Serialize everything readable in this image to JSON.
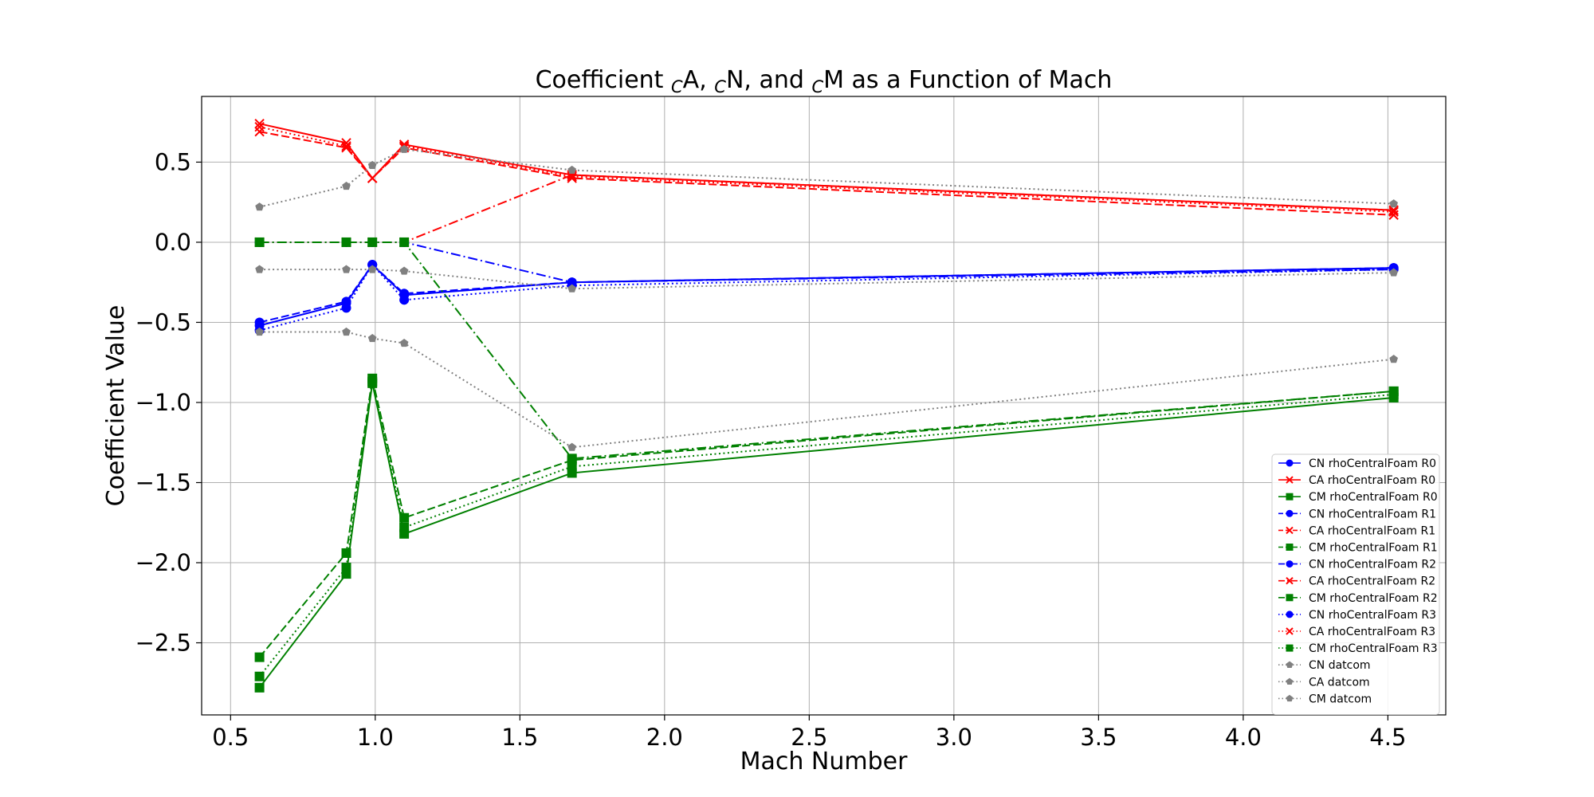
{
  "chart_data": {
    "type": "line",
    "title_parts": [
      "Coefficient ",
      "C",
      "A",
      ", ",
      "C",
      "N",
      ", and ",
      "C",
      "M",
      " as a Function of Mach"
    ],
    "xlabel": "Mach Number",
    "ylabel": "Coefficient Value",
    "xlim": [
      0.4,
      4.7
    ],
    "ylim": [
      -2.95,
      0.91
    ],
    "xticks": [
      0.5,
      1.0,
      1.5,
      2.0,
      2.5,
      3.0,
      3.5,
      4.0,
      4.5
    ],
    "xtick_labels": [
      "0.5",
      "1.0",
      "1.5",
      "2.0",
      "2.5",
      "3.0",
      "3.5",
      "4.0",
      "4.5"
    ],
    "yticks": [
      0.5,
      0.0,
      -0.5,
      -1.0,
      -1.5,
      -2.0,
      -2.5
    ],
    "ytick_labels": [
      "0.5",
      "0.0",
      "−0.5",
      "−1.0",
      "−1.5",
      "−2.0",
      "−2.5"
    ],
    "grid": true,
    "legend_position": "lower-right",
    "x": [
      0.6,
      0.9,
      0.99,
      1.1,
      1.68,
      4.52
    ],
    "series": [
      {
        "name": "CN rhoCentralFoam R0",
        "color": "#0000ff",
        "dash": "solid",
        "marker": "circle",
        "values": [
          -0.52,
          -0.38,
          -0.14,
          -0.33,
          -0.25,
          -0.16
        ]
      },
      {
        "name": "CA rhoCentralFoam R0",
        "color": "#ff0000",
        "dash": "solid",
        "marker": "x",
        "values": [
          0.74,
          0.62,
          0.4,
          0.61,
          0.42,
          0.2
        ]
      },
      {
        "name": "CM rhoCentralFoam R0",
        "color": "#008000",
        "dash": "solid",
        "marker": "square",
        "values": [
          -2.78,
          -2.07,
          -0.88,
          -1.82,
          -1.44,
          -0.97
        ]
      },
      {
        "name": "CN rhoCentralFoam R1",
        "color": "#0000ff",
        "dash": "dashed",
        "marker": "circle",
        "values": [
          -0.5,
          -0.37,
          -0.14,
          -0.32,
          -0.25,
          -0.16
        ]
      },
      {
        "name": "CA rhoCentralFoam R1",
        "color": "#ff0000",
        "dash": "dashed",
        "marker": "x",
        "values": [
          0.69,
          0.59,
          0.4,
          0.59,
          0.4,
          0.17
        ]
      },
      {
        "name": "CM rhoCentralFoam R1",
        "color": "#008000",
        "dash": "dashed",
        "marker": "square",
        "values": [
          -2.59,
          -1.94,
          -0.85,
          -1.72,
          -1.36,
          -0.93
        ]
      },
      {
        "name": "CN rhoCentralFoam R2",
        "color": "#0000ff",
        "dash": "dashdot",
        "marker": "circle",
        "values": [
          0.0,
          0.0,
          0.0,
          0.0,
          -0.25,
          -0.17
        ]
      },
      {
        "name": "CA rhoCentralFoam R2",
        "color": "#ff0000",
        "dash": "dashdot",
        "marker": "x",
        "values": [
          0.0,
          0.0,
          0.0,
          0.0,
          0.42,
          0.2
        ]
      },
      {
        "name": "CM rhoCentralFoam R2",
        "color": "#008000",
        "dash": "dashdot",
        "marker": "square",
        "values": [
          0.0,
          0.0,
          0.0,
          0.0,
          -1.35,
          -0.93
        ]
      },
      {
        "name": "CN rhoCentralFoam R3",
        "color": "#0000ff",
        "dash": "dotted",
        "marker": "circle",
        "values": [
          -0.55,
          -0.41,
          -0.14,
          -0.36,
          -0.27,
          -0.17
        ]
      },
      {
        "name": "CA rhoCentralFoam R3",
        "color": "#ff0000",
        "dash": "dotted",
        "marker": "x",
        "values": [
          0.72,
          0.6,
          0.4,
          0.6,
          0.41,
          0.19
        ]
      },
      {
        "name": "CM rhoCentralFoam R3",
        "color": "#008000",
        "dash": "dotted",
        "marker": "square",
        "values": [
          -2.71,
          -2.03,
          -0.87,
          -1.78,
          -1.4,
          -0.95
        ]
      },
      {
        "name": "CN datcom",
        "color": "#808080",
        "dash": "dotted",
        "marker": "pentagon",
        "values": [
          -0.17,
          -0.17,
          -0.17,
          -0.18,
          -0.29,
          -0.19
        ]
      },
      {
        "name": "CA datcom",
        "color": "#808080",
        "dash": "dotted",
        "marker": "pentagon",
        "values": [
          0.22,
          0.35,
          0.48,
          0.58,
          0.45,
          0.24
        ]
      },
      {
        "name": "CM datcom",
        "color": "#808080",
        "dash": "dotted",
        "marker": "pentagon",
        "values": [
          -0.56,
          -0.56,
          -0.6,
          -0.63,
          -1.28,
          -0.73
        ]
      }
    ]
  }
}
